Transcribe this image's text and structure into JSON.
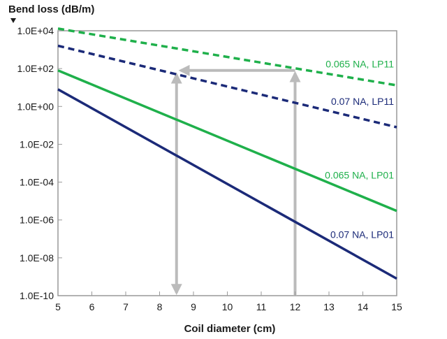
{
  "chart_data": {
    "type": "line",
    "title": "",
    "ylabel": "Bend loss (dB/m)",
    "xlabel": "Coil diameter (cm)",
    "y_scale": "log",
    "xlim": [
      5,
      15
    ],
    "ylim": [
      1e-10,
      10000.0
    ],
    "x_ticks": [
      5,
      6,
      7,
      8,
      9,
      10,
      11,
      12,
      13,
      14,
      15
    ],
    "x_tick_labels": [
      "5",
      "6",
      "7",
      "8",
      "9",
      "10",
      "11",
      "12",
      "13",
      "14",
      "15"
    ],
    "y_ticks": [
      1e-10,
      1e-08,
      1e-06,
      0.0001,
      0.01,
      1,
      100,
      10000
    ],
    "y_tick_labels": [
      "1.0E-10",
      "1.0E-08",
      "1.0E-06",
      "1.0E-04",
      "1.0E-02",
      "1.0E+00",
      "1.0E+02",
      "1.0E+04"
    ],
    "grid": false,
    "series": [
      {
        "name": "0.065 NA, LP11",
        "color": "#1fb04b",
        "dash": "dashed",
        "x": [
          5,
          15
        ],
        "y": [
          13000.0,
          13
        ]
      },
      {
        "name": "0.07 NA, LP11",
        "color": "#1b2a78",
        "dash": "dashed",
        "x": [
          5,
          15
        ],
        "y": [
          1600,
          0.08
        ]
      },
      {
        "name": "0.065 NA, LP01",
        "color": "#1fb04b",
        "dash": "solid",
        "x": [
          5,
          15
        ],
        "y": [
          80,
          3e-06
        ]
      },
      {
        "name": "0.07 NA, LP01",
        "color": "#1b2a78",
        "dash": "solid",
        "x": [
          5,
          15
        ],
        "y": [
          8,
          8e-10
        ]
      }
    ],
    "annotation_arrows": {
      "color": "#bbbbbb",
      "path_points": [
        {
          "x": 12,
          "y": 1e-10
        },
        {
          "x": 12,
          "y": 80
        },
        {
          "x": 8.5,
          "y": 80
        },
        {
          "x": 8.5,
          "y": 1e-10
        }
      ]
    }
  }
}
